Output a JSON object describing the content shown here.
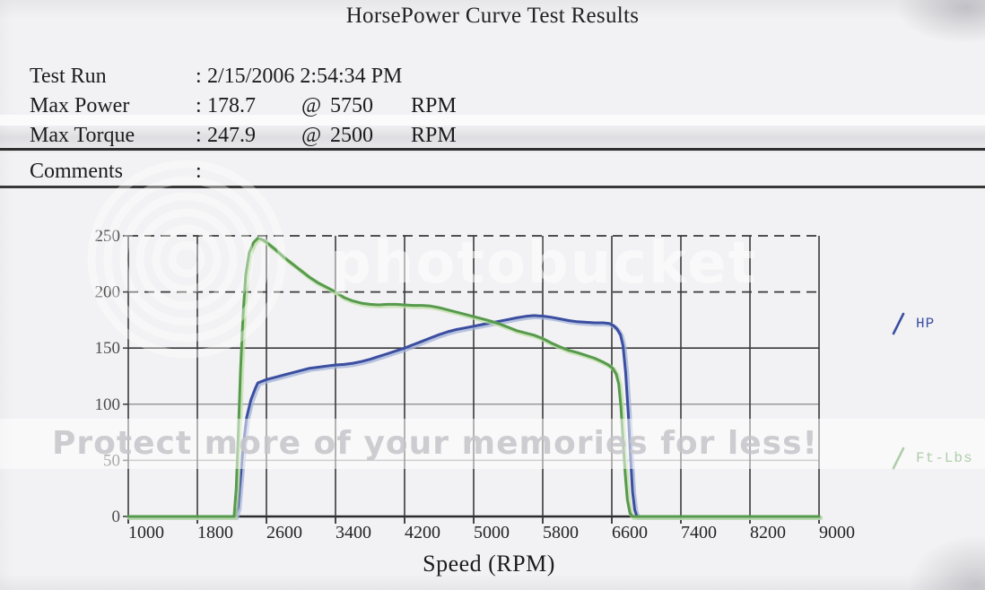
{
  "title": "HorsePower Curve Test Results",
  "info": {
    "colon": ":",
    "test_run": {
      "label": "Test Run",
      "value": "2/15/2006 2:54:34 PM"
    },
    "max_power": {
      "label": "Max Power",
      "value": "178.7",
      "at": "@",
      "rpm": "5750",
      "unit": "RPM"
    },
    "max_torque": {
      "label": "Max Torque",
      "value": "247.9",
      "at": "@",
      "rpm": "2500",
      "unit": "RPM"
    },
    "comments": {
      "label": "Comments",
      "value": ""
    }
  },
  "watermark": {
    "brand": "photobucket",
    "tagline": "Protect more of your memories for less!"
  },
  "chart_data": {
    "type": "line",
    "title": "",
    "xlabel": "Speed (RPM)",
    "ylabel": "",
    "xlim": [
      1000,
      9000
    ],
    "ylim": [
      0,
      250
    ],
    "x_ticks": [
      1000,
      1800,
      2600,
      3400,
      4200,
      5000,
      5800,
      6600,
      7400,
      8200,
      9000
    ],
    "y_ticks": [
      0,
      50,
      100,
      150,
      200,
      250
    ],
    "grid": true,
    "legend_position": "right",
    "series": [
      {
        "name": "HP",
        "color": "#3b4ea0",
        "halo": "#a2b1d8",
        "points": [
          [
            1000,
            0
          ],
          [
            1600,
            0
          ],
          [
            2100,
            0
          ],
          [
            2240,
            0
          ],
          [
            2270,
            8
          ],
          [
            2300,
            35
          ],
          [
            2330,
            62
          ],
          [
            2370,
            88
          ],
          [
            2420,
            104
          ],
          [
            2470,
            114
          ],
          [
            2500,
            119
          ],
          [
            2600,
            122
          ],
          [
            2700,
            124
          ],
          [
            2800,
            126
          ],
          [
            2900,
            128
          ],
          [
            3000,
            130
          ],
          [
            3100,
            132
          ],
          [
            3200,
            133
          ],
          [
            3300,
            134
          ],
          [
            3400,
            135
          ],
          [
            3500,
            135.5
          ],
          [
            3600,
            136.5
          ],
          [
            3700,
            138
          ],
          [
            3800,
            140
          ],
          [
            3900,
            142.5
          ],
          [
            4000,
            145
          ],
          [
            4100,
            147.5
          ],
          [
            4200,
            150
          ],
          [
            4300,
            153
          ],
          [
            4400,
            156
          ],
          [
            4500,
            159
          ],
          [
            4600,
            162
          ],
          [
            4700,
            164.5
          ],
          [
            4800,
            166.5
          ],
          [
            4900,
            168
          ],
          [
            5000,
            169.5
          ],
          [
            5100,
            171
          ],
          [
            5200,
            172.5
          ],
          [
            5300,
            174
          ],
          [
            5400,
            175.5
          ],
          [
            5500,
            177
          ],
          [
            5600,
            178.3
          ],
          [
            5700,
            179
          ],
          [
            5750,
            178.7
          ],
          [
            5800,
            178.5
          ],
          [
            5900,
            177.5
          ],
          [
            6000,
            176
          ],
          [
            6100,
            174.5
          ],
          [
            6200,
            173.5
          ],
          [
            6300,
            173
          ],
          [
            6400,
            172.5
          ],
          [
            6500,
            172.5
          ],
          [
            6570,
            172
          ],
          [
            6620,
            170
          ],
          [
            6660,
            167
          ],
          [
            6700,
            162
          ],
          [
            6730,
            152
          ],
          [
            6760,
            128
          ],
          [
            6790,
            92
          ],
          [
            6815,
            55
          ],
          [
            6840,
            22
          ],
          [
            6865,
            6
          ],
          [
            6890,
            0
          ],
          [
            7400,
            0
          ],
          [
            8200,
            0
          ],
          [
            9000,
            0
          ]
        ]
      },
      {
        "name": "Ft-Lbs",
        "color": "#579a4d",
        "halo": "#bedfa6",
        "points": [
          [
            1000,
            0
          ],
          [
            1600,
            0
          ],
          [
            2100,
            0
          ],
          [
            2225,
            0
          ],
          [
            2250,
            25
          ],
          [
            2275,
            75
          ],
          [
            2300,
            130
          ],
          [
            2330,
            180
          ],
          [
            2360,
            215
          ],
          [
            2400,
            235
          ],
          [
            2450,
            244
          ],
          [
            2500,
            247.9
          ],
          [
            2560,
            246.5
          ],
          [
            2620,
            243
          ],
          [
            2700,
            238
          ],
          [
            2800,
            231
          ],
          [
            2900,
            225
          ],
          [
            3000,
            219
          ],
          [
            3100,
            213
          ],
          [
            3200,
            208
          ],
          [
            3300,
            204
          ],
          [
            3400,
            200
          ],
          [
            3500,
            195
          ],
          [
            3600,
            192
          ],
          [
            3700,
            190
          ],
          [
            3800,
            189
          ],
          [
            3900,
            188.5
          ],
          [
            4000,
            189
          ],
          [
            4100,
            189
          ],
          [
            4200,
            188.5
          ],
          [
            4300,
            188
          ],
          [
            4400,
            188
          ],
          [
            4500,
            187.5
          ],
          [
            4600,
            186
          ],
          [
            4700,
            184
          ],
          [
            4800,
            182
          ],
          [
            4900,
            180
          ],
          [
            5000,
            178
          ],
          [
            5100,
            176
          ],
          [
            5200,
            174
          ],
          [
            5300,
            171.5
          ],
          [
            5400,
            168.5
          ],
          [
            5500,
            165.5
          ],
          [
            5600,
            163.5
          ],
          [
            5700,
            161.5
          ],
          [
            5800,
            158.5
          ],
          [
            5900,
            154.5
          ],
          [
            6000,
            151
          ],
          [
            6100,
            148
          ],
          [
            6200,
            146
          ],
          [
            6300,
            143.5
          ],
          [
            6400,
            141
          ],
          [
            6500,
            137.5
          ],
          [
            6560,
            135
          ],
          [
            6610,
            132
          ],
          [
            6650,
            127
          ],
          [
            6680,
            118
          ],
          [
            6705,
            98
          ],
          [
            6730,
            68
          ],
          [
            6755,
            38
          ],
          [
            6780,
            15
          ],
          [
            6810,
            3
          ],
          [
            6840,
            0
          ],
          [
            7400,
            0
          ],
          [
            8200,
            0
          ],
          [
            9000,
            0
          ]
        ]
      }
    ]
  }
}
